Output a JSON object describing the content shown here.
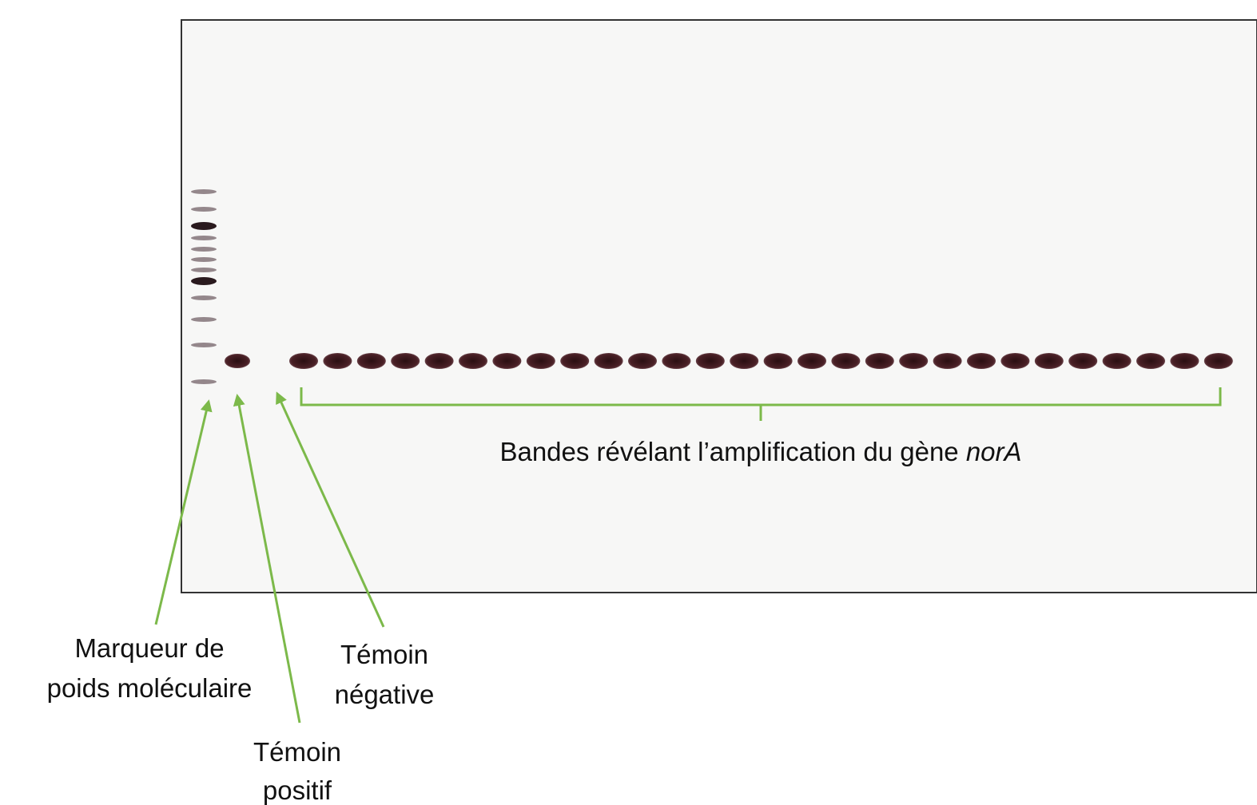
{
  "annotations": {
    "ladder": [
      "Marqueur de",
      "poids moléculaire"
    ],
    "positive_control": [
      "Témoin",
      "positif"
    ],
    "negative_control": [
      "Témoin",
      "négative"
    ],
    "bands": {
      "text": "Bandes révélant l’amplification du gène ",
      "gene": "norA"
    }
  }
}
